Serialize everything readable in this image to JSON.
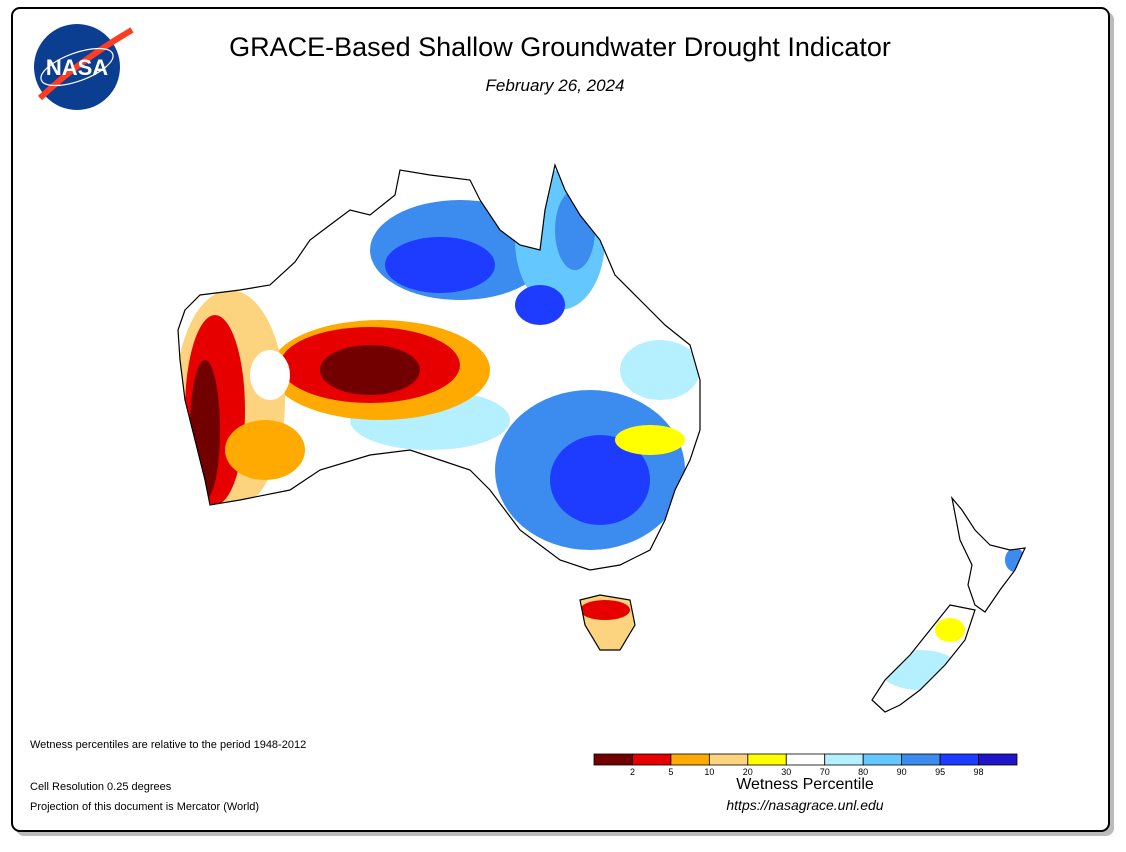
{
  "header": {
    "logo": "NASA",
    "title": "GRACE-Based Shallow Groundwater Drought Indicator",
    "subtitle": "February 26, 2024"
  },
  "notes": [
    "Wetness percentiles are relative to the period 1948-2012",
    "Cell Resolution 0.25 degrees",
    "Projection of this document is Mercator (World)"
  ],
  "legend": {
    "title": "Wetness Percentile",
    "colors": [
      "#730000",
      "#e60000",
      "#ffaa00",
      "#fcd37f",
      "#ffff00",
      "#ffffff",
      "#b4f0ff",
      "#64c8ff",
      "#3c8cf0",
      "#1e3cff",
      "#1e14c8"
    ],
    "ticks": [
      2,
      5,
      10,
      20,
      30,
      70,
      80,
      90,
      95,
      98
    ]
  },
  "source": "https://nasagrace.unl.edu"
}
